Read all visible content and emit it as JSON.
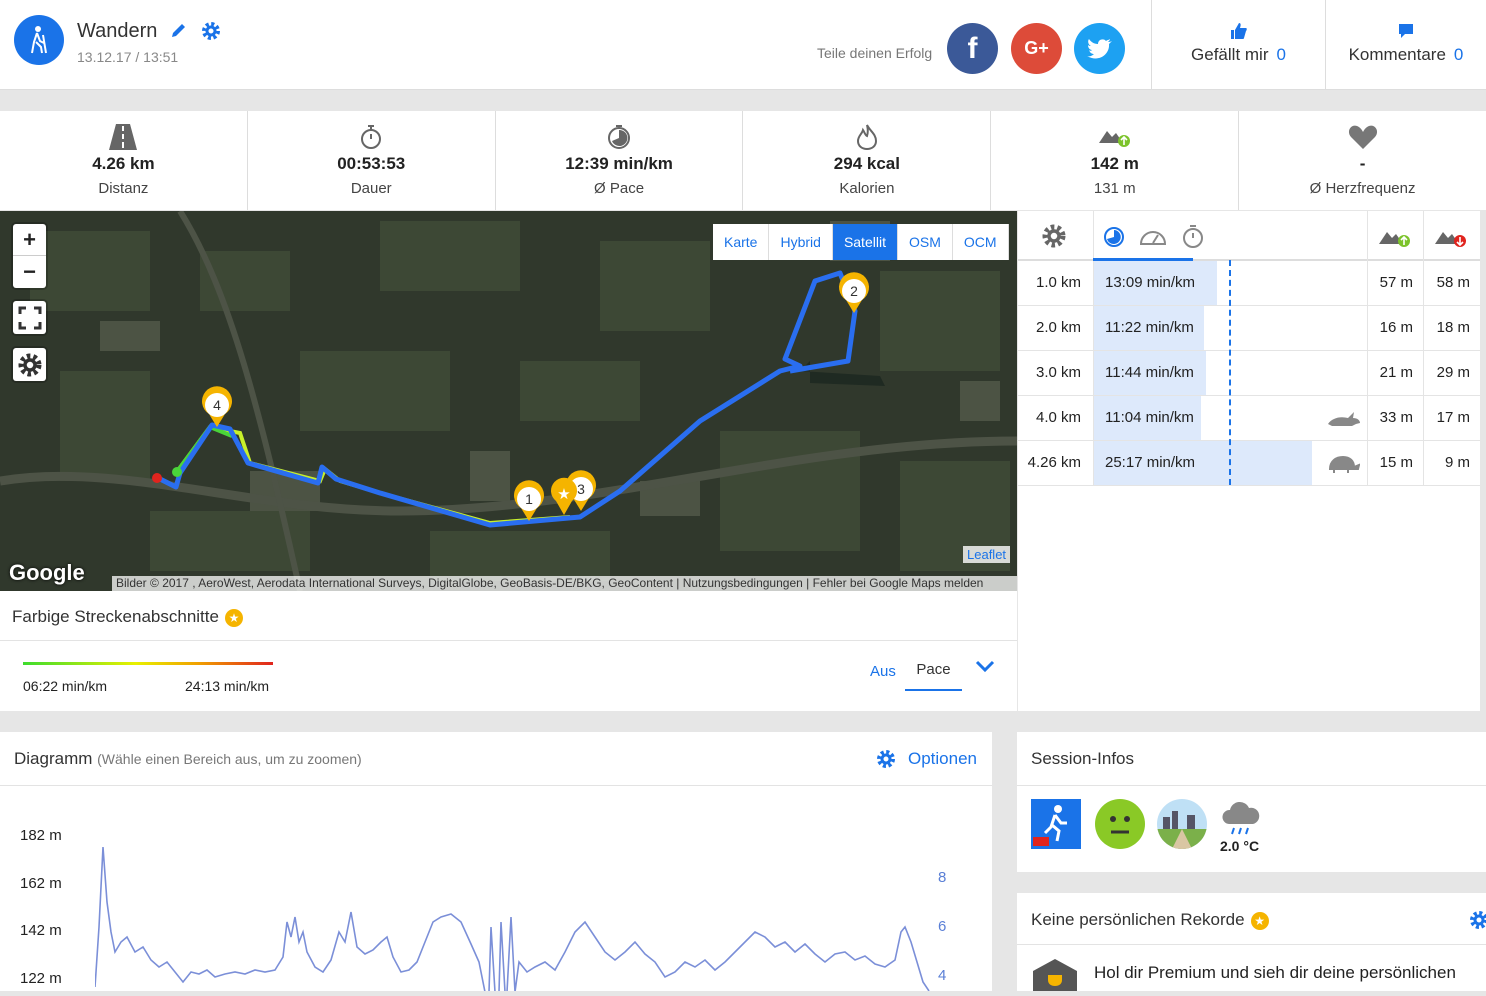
{
  "activity": {
    "title": "Wandern",
    "date": "13.12.17 / 13:51"
  },
  "share": {
    "label": "Teile deinen Erfolg",
    "facebook": "f",
    "googleplus": "G+"
  },
  "likes": {
    "label": "Gefällt mir",
    "count": "0"
  },
  "comments": {
    "label": "Kommentare",
    "count": "0"
  },
  "stats": [
    {
      "icon": "road-icon",
      "value": "4.26 km",
      "label": "Distanz"
    },
    {
      "icon": "stopwatch-icon",
      "value": "00:53:53",
      "label": "Dauer"
    },
    {
      "icon": "pace-icon",
      "value": "12:39 min/km",
      "label": "Ø Pace"
    },
    {
      "icon": "flame-icon",
      "value": "294 kcal",
      "label": "Kalorien"
    },
    {
      "icon": "elevation-icon",
      "value": "142 m",
      "label": "131 m"
    },
    {
      "icon": "heart-icon",
      "value": "-",
      "label": "Ø Herzfrequenz"
    }
  ],
  "map": {
    "zoom_in": "+",
    "zoom_out": "−",
    "layers": [
      "Karte",
      "Hybrid",
      "Satellit",
      "OSM",
      "OCM"
    ],
    "active_layer": "Satellit",
    "attribution": "Bilder © 2017 , AeroWest, Aerodata International Surveys, DigitalGlobe, GeoBasis-DE/BKG, GeoContent  |  Nutzungsbedingungen  |  Fehler bei Google Maps melden",
    "leaflet": "Leaflet",
    "google": "Google",
    "markers": [
      "1",
      "2",
      "3",
      "4"
    ]
  },
  "segments": {
    "title": "Farbige Streckenabschnitte",
    "min_label": "06:22 min/km",
    "max_label": "24:13 min/km",
    "off_label": "Aus",
    "pace_label": "Pace"
  },
  "splits": [
    {
      "km": "1.0 km",
      "pace": "13:09 min/km",
      "up": "57 m",
      "down": "58 m",
      "bar": 0.46,
      "badge": ""
    },
    {
      "km": "2.0 km",
      "pace": "11:22 min/km",
      "up": "16 m",
      "down": "18 m",
      "bar": 0.41,
      "badge": ""
    },
    {
      "km": "3.0 km",
      "pace": "11:44 min/km",
      "up": "21 m",
      "down": "29 m",
      "bar": 0.42,
      "badge": ""
    },
    {
      "km": "4.0 km",
      "pace": "11:04 min/km",
      "up": "33 m",
      "down": "17 m",
      "bar": 0.4,
      "badge": "rabbit-icon"
    },
    {
      "km": "4.26 km",
      "pace": "25:17 min/km",
      "up": "15 m",
      "down": "9 m",
      "bar": 0.81,
      "badge": "turtle-icon"
    }
  ],
  "diagram": {
    "title": "Diagramm",
    "hint": "(Wähle einen Bereich aus, um zu zoomen)",
    "options": "Optionen",
    "y_left": [
      "182 m",
      "162 m",
      "142 m",
      "122 m"
    ],
    "y_right": [
      "8",
      "6",
      "4"
    ]
  },
  "session": {
    "title": "Session-Infos",
    "temperature": "2.0 °C"
  },
  "records": {
    "title": "Keine persönlichen Rekorde",
    "text": "Hol dir Premium und sieh dir deine persönlichen"
  },
  "colors": {
    "accent": "#1a73e8",
    "facebook": "#3b5998",
    "googleplus": "#dd4b39",
    "twitter": "#1da1f2",
    "star": "#f5b400",
    "route": "#2a6ef0"
  }
}
